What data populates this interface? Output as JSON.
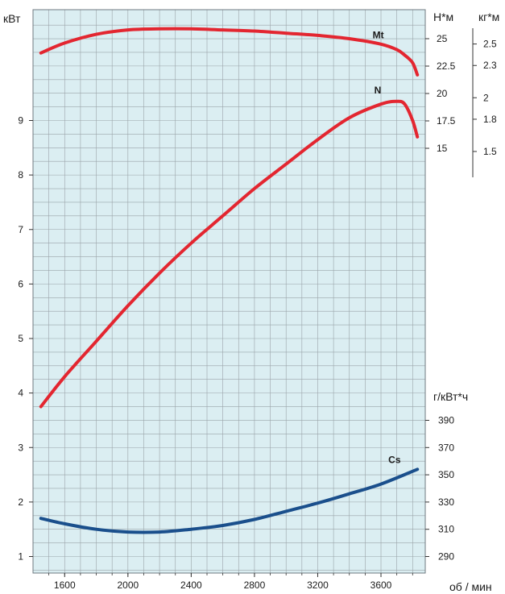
{
  "chart_data": {
    "type": "line",
    "title": "",
    "xlabel": "об / мин",
    "x_ticks": [
      "1600",
      "2000",
      "2400",
      "2800",
      "3200",
      "3600"
    ],
    "xlim": [
      1400,
      3880
    ],
    "axes": {
      "power": {
        "unit": "кВт",
        "ylim": [
          0.7,
          10.8
        ],
        "ticks": [
          "1",
          "2",
          "3",
          "4",
          "5",
          "6",
          "7",
          "8",
          "9"
        ]
      },
      "torque_nm": {
        "unit": "Н*м",
        "ticks": [
          "25",
          "22.5",
          "20",
          "17.5",
          "15"
        ]
      },
      "torque_kgm": {
        "unit": "кг*м",
        "ticks": [
          "2.5",
          "2.3",
          "2",
          "1.8",
          "1.5"
        ]
      },
      "consumption": {
        "unit": "г/кВт*ч",
        "ticks": [
          "390",
          "370",
          "350",
          "330",
          "310",
          "290"
        ]
      }
    },
    "grid": true,
    "series": [
      {
        "name": "Mt",
        "axis": "torque_nm",
        "color": "#e32630",
        "x": [
          1450,
          1600,
          1800,
          2000,
          2200,
          2400,
          2600,
          2800,
          3000,
          3200,
          3400,
          3600,
          3700,
          3750,
          3800,
          3830
        ],
        "y": [
          23.7,
          24.6,
          25.4,
          25.8,
          25.9,
          25.9,
          25.8,
          25.7,
          25.5,
          25.3,
          25.0,
          24.5,
          24.0,
          23.5,
          22.8,
          21.7
        ]
      },
      {
        "name": "N",
        "axis": "power",
        "color": "#e32630",
        "x": [
          1450,
          1600,
          1800,
          2000,
          2200,
          2400,
          2600,
          2800,
          3000,
          3200,
          3400,
          3600,
          3700,
          3750,
          3800,
          3830
        ],
        "y": [
          3.75,
          4.3,
          4.95,
          5.6,
          6.2,
          6.75,
          7.25,
          7.75,
          8.2,
          8.65,
          9.05,
          9.3,
          9.35,
          9.3,
          9.0,
          8.7
        ]
      },
      {
        "name": "Cs",
        "axis": "consumption",
        "color": "#1a4f8c",
        "x": [
          1450,
          1600,
          1800,
          2000,
          2200,
          2400,
          2600,
          2800,
          3000,
          3200,
          3400,
          3600,
          3830
        ],
        "y": [
          1.7,
          1.6,
          1.5,
          1.45,
          1.45,
          1.5,
          1.57,
          1.68,
          1.83,
          1.98,
          2.15,
          2.33,
          2.6
        ]
      }
    ]
  }
}
